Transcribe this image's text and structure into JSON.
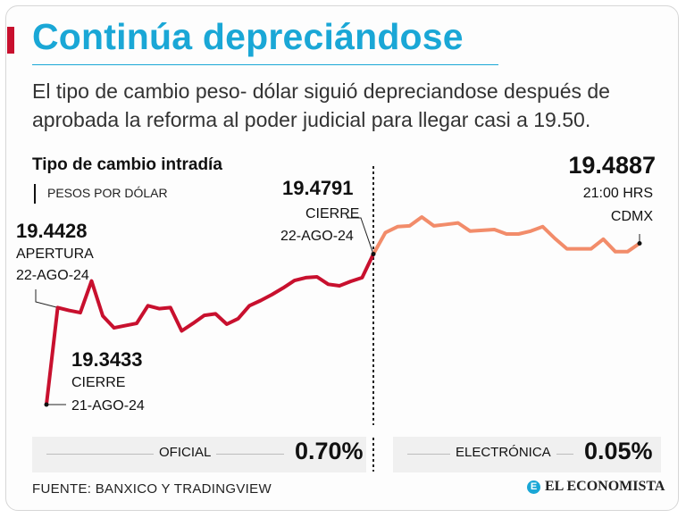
{
  "header": {
    "title": "Continúa depreciándose",
    "subtitle": "El tipo de cambio peso- dólar siguió depreciandose después de aprobada la reforma al poder judicial para llegar casi a 19.50."
  },
  "chart_data": {
    "type": "line",
    "title": "Tipo de cambio intradía",
    "ylabel": "PESOS POR DÓLAR",
    "series": [
      {
        "name": "Oficial",
        "color": "#c8102e",
        "values": [
          19.3433,
          19.4308,
          19.4282,
          19.4262,
          19.4548,
          19.4232,
          19.4125,
          19.4145,
          19.4165,
          19.4325,
          19.4298,
          19.4308,
          19.4098,
          19.4165,
          19.4238,
          19.4252,
          19.4158,
          19.4208,
          19.4325,
          19.4372,
          19.4425,
          19.4485,
          19.4552,
          19.4578,
          19.4585,
          19.4518,
          19.4505,
          19.4545,
          19.4578,
          19.4791
        ]
      },
      {
        "name": "Electrónica",
        "color": "#f28c6a",
        "values": [
          19.4791,
          19.4985,
          19.5038,
          19.5045,
          19.5125,
          19.5045,
          19.5058,
          19.5072,
          19.4998,
          19.5005,
          19.5012,
          19.4972,
          19.4972,
          19.4998,
          19.5038,
          19.4932,
          19.4838,
          19.4838,
          19.4838,
          19.4925,
          19.4812,
          19.4812,
          19.4887
        ]
      }
    ],
    "annotations": [
      {
        "value": "19.4428",
        "line1": "APERTURA",
        "line2": "22-AGO-24"
      },
      {
        "value": "19.3433",
        "line1": "CIERRE",
        "line2": "21-AGO-24"
      },
      {
        "value": "19.4791",
        "line1": "CIERRE",
        "line2": "22-AGO-24"
      },
      {
        "value": "19.4887",
        "line1": "21:00 HRS",
        "line2": "CDMX"
      }
    ]
  },
  "summary": {
    "official_label": "OFICIAL",
    "official_value": "0.70%",
    "electronic_label": "ELECTRÓNICA",
    "electronic_value": "0.05%"
  },
  "footer": {
    "source": "FUENTE: BANXICO Y TRADINGVIEW",
    "brand": "EL ECONOMISTA",
    "brand_mark": "E"
  }
}
